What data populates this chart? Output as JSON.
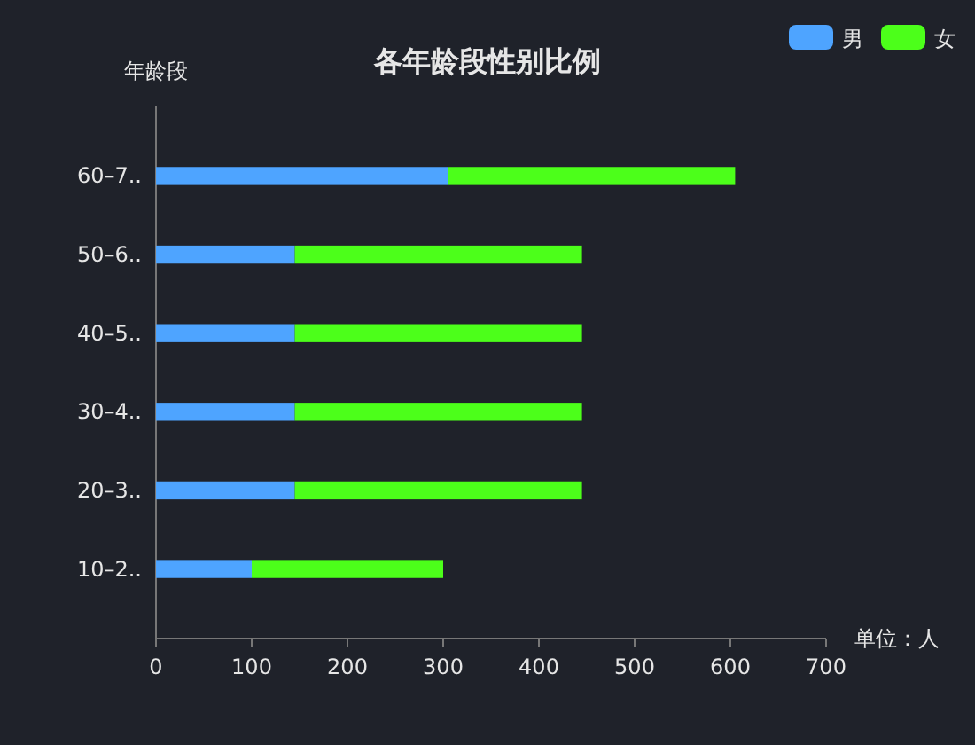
{
  "chart_data": {
    "type": "bar",
    "orientation": "horizontal",
    "stacked": true,
    "title": "各年龄段性别比例",
    "ylabel": "年龄段",
    "xlabel": "单位：人",
    "categories": [
      "60–7..",
      "50–6..",
      "40–5..",
      "30–4..",
      "20–3..",
      "10–2.."
    ],
    "series": [
      {
        "name": "男",
        "color": "#4ea4ff",
        "values": [
          305,
          145,
          145,
          145,
          145,
          100
        ]
      },
      {
        "name": "女",
        "color": "#4cff1a",
        "values": [
          300,
          300,
          300,
          300,
          300,
          200
        ]
      }
    ],
    "xlim": [
      0,
      700
    ],
    "xticks": [
      0,
      100,
      200,
      300,
      400,
      500,
      600,
      700
    ],
    "grid": false,
    "legend": "top right"
  }
}
